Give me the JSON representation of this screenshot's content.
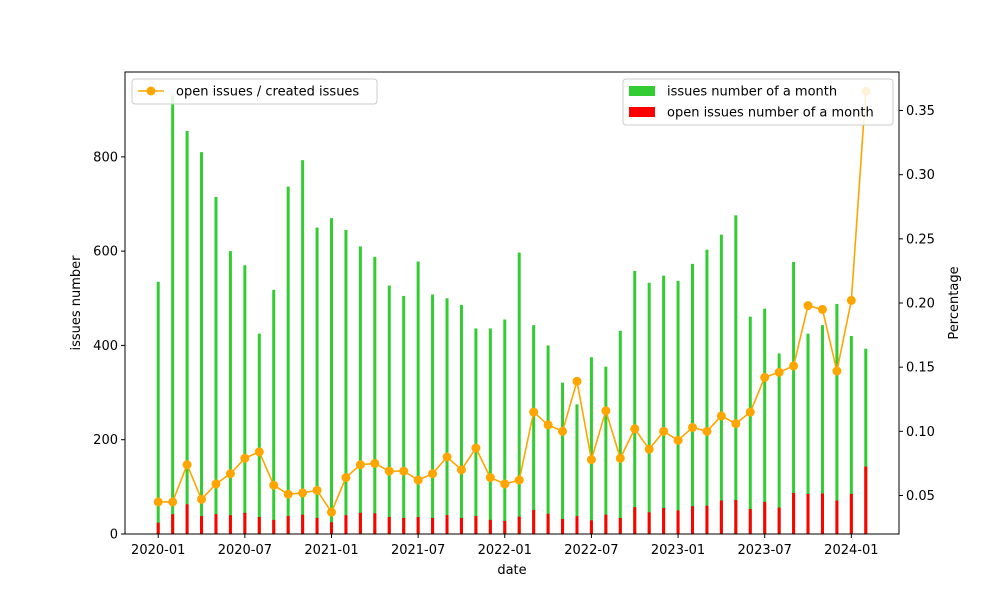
{
  "chart_data": {
    "type": "bar",
    "xlabel": "date",
    "ylabel": "issues number",
    "y2label": "Percentage",
    "ylim": [
      0,
      980
    ],
    "y2lim": [
      0.02,
      0.38
    ],
    "yticks": [
      0,
      200,
      400,
      600,
      800
    ],
    "y2ticks": [
      0.05,
      0.1,
      0.15,
      0.2,
      0.25,
      0.3,
      0.35
    ],
    "y2tick_labels": [
      "0.05",
      "0.10",
      "0.15",
      "0.20",
      "0.25",
      "0.30",
      "0.35"
    ],
    "xticks": [
      "2020-01",
      "2020-07",
      "2021-01",
      "2021-07",
      "2022-01",
      "2022-07",
      "2023-01",
      "2023-07",
      "2024-01"
    ],
    "months": [
      "2020-01",
      "2020-02",
      "2020-03",
      "2020-04",
      "2020-05",
      "2020-06",
      "2020-07",
      "2020-08",
      "2020-09",
      "2020-10",
      "2020-11",
      "2020-12",
      "2021-01",
      "2021-02",
      "2021-03",
      "2021-04",
      "2021-05",
      "2021-06",
      "2021-07",
      "2021-08",
      "2021-09",
      "2021-10",
      "2021-11",
      "2021-12",
      "2022-01",
      "2022-02",
      "2022-03",
      "2022-04",
      "2022-05",
      "2022-06",
      "2022-07",
      "2022-08",
      "2022-09",
      "2022-10",
      "2022-11",
      "2022-12",
      "2023-01",
      "2023-02",
      "2023-03",
      "2023-04",
      "2023-05",
      "2023-06",
      "2023-07",
      "2023-08",
      "2023-09",
      "2023-10",
      "2023-11",
      "2023-12",
      "2024-01",
      "2024-02"
    ],
    "series": [
      {
        "name": "issues number of a month",
        "kind": "bar",
        "axis": "left",
        "color": "#33cc33",
        "values": [
          535,
          930,
          855,
          810,
          715,
          600,
          570,
          425,
          518,
          737,
          793,
          650,
          670,
          645,
          610,
          588,
          527,
          505,
          578,
          508,
          500,
          486,
          436,
          436,
          455,
          597,
          443,
          400,
          321,
          275,
          375,
          355,
          431,
          558,
          533,
          548,
          537,
          573,
          603,
          635,
          676,
          461,
          478,
          383,
          577,
          425,
          443,
          488,
          420,
          393
        ]
      },
      {
        "name": "open issues number of a month",
        "kind": "bar",
        "axis": "left",
        "color": "#ff0000",
        "values": [
          24,
          42,
          63,
          38,
          42,
          40,
          45,
          36,
          30,
          38,
          41,
          34,
          25,
          40,
          45,
          44,
          36,
          34,
          36,
          34,
          40,
          34,
          38,
          30,
          28,
          37,
          51,
          43,
          32,
          38,
          29,
          41,
          34,
          57,
          46,
          55,
          50,
          59,
          60,
          71,
          72,
          53,
          68,
          56,
          87,
          85,
          86,
          71,
          85,
          143
        ]
      },
      {
        "name": "open issues / created issues",
        "kind": "line",
        "axis": "right",
        "color": "#ffa500",
        "values": [
          0.045,
          0.045,
          0.074,
          0.047,
          0.059,
          0.067,
          0.079,
          0.084,
          0.058,
          0.051,
          0.052,
          0.054,
          0.037,
          0.064,
          0.074,
          0.075,
          0.069,
          0.069,
          0.062,
          0.067,
          0.08,
          0.07,
          0.087,
          0.064,
          0.059,
          0.062,
          0.115,
          0.105,
          0.1,
          0.139,
          0.078,
          0.116,
          0.079,
          0.102,
          0.086,
          0.1,
          0.093,
          0.103,
          0.1,
          0.112,
          0.106,
          0.115,
          0.142,
          0.146,
          0.151,
          0.198,
          0.195,
          0.147,
          0.202,
          0.365
        ]
      }
    ],
    "legends": [
      {
        "position": "top-left",
        "entries": [
          "open issues / created issues"
        ]
      },
      {
        "position": "top-right",
        "entries": [
          "issues number of a month",
          "open issues number of a month"
        ]
      }
    ]
  }
}
